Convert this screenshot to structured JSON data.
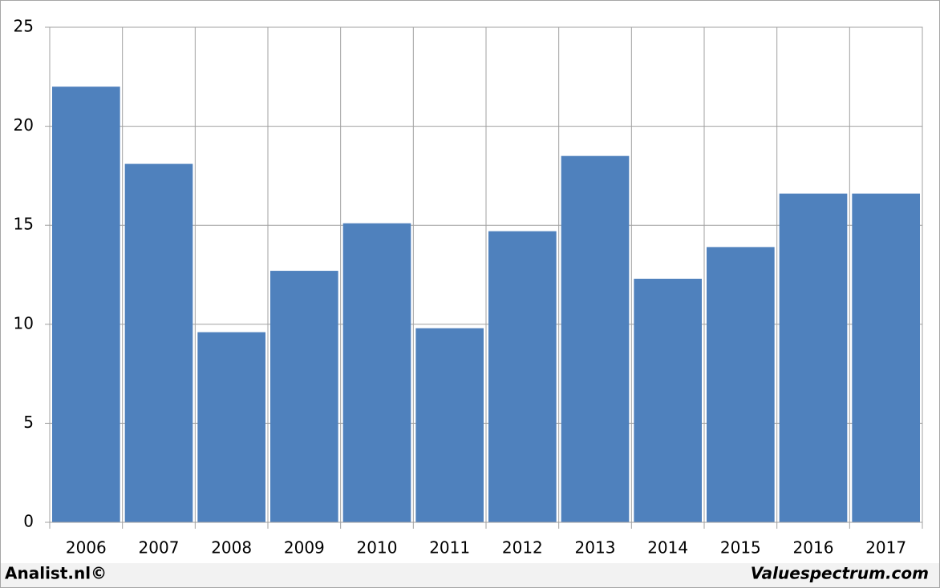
{
  "chart_data": {
    "type": "bar",
    "categories": [
      "2006",
      "2007",
      "2008",
      "2009",
      "2010",
      "2011",
      "2012",
      "2013",
      "2014",
      "2015",
      "2016",
      "2017"
    ],
    "values": [
      22,
      18.1,
      9.6,
      12.7,
      15.1,
      9.8,
      14.7,
      18.5,
      12.3,
      13.9,
      16.6,
      16.6
    ],
    "color": "#4f81bd",
    "ylim": [
      0,
      25
    ],
    "yticks": [
      0,
      5,
      10,
      15,
      20,
      25
    ],
    "grid": true,
    "footer_left": "Analist.nl©",
    "footer_right": "Valuespectrum.com"
  }
}
